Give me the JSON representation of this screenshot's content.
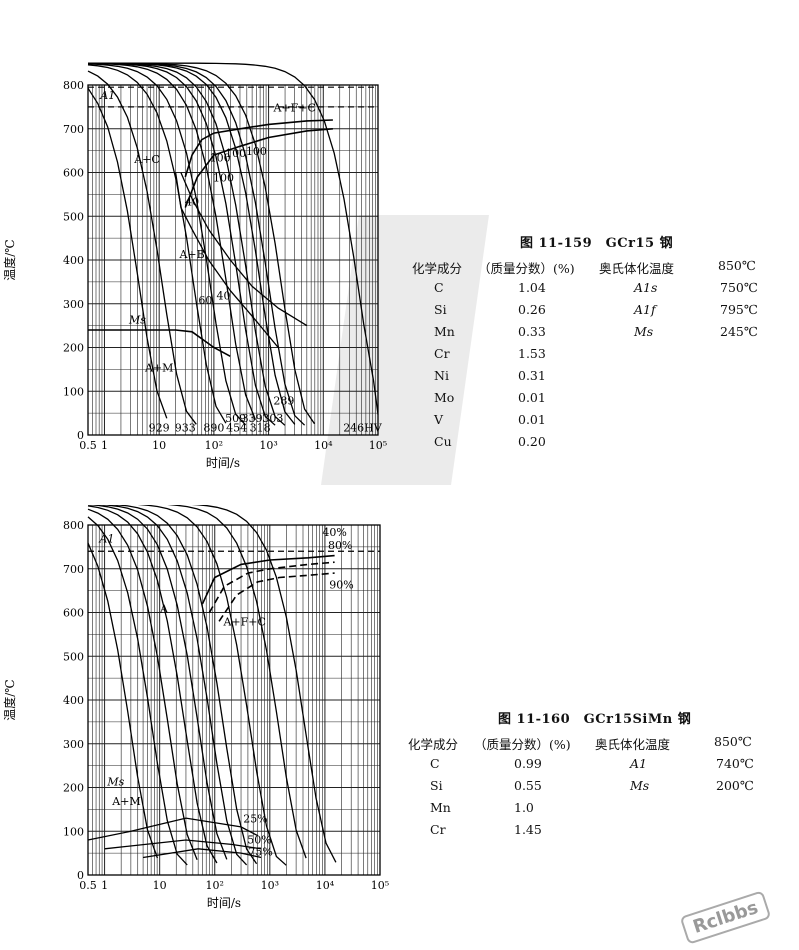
{
  "figures": [
    {
      "caption": "图 11-159　GCr15 钢",
      "composition_header": [
        "化学成分",
        "（质量分数）(%)",
        "奥氏体化温度",
        "850℃"
      ],
      "elements": [
        {
          "el": "C",
          "val": "1.04"
        },
        {
          "el": "Si",
          "val": "0.26"
        },
        {
          "el": "Mn",
          "val": "0.33"
        },
        {
          "el": "Cr",
          "val": "1.53"
        },
        {
          "el": "Ni",
          "val": "0.31"
        },
        {
          "el": "Mo",
          "val": "0.01"
        },
        {
          "el": "V",
          "val": "0.01"
        },
        {
          "el": "Cu",
          "val": "0.20"
        }
      ],
      "temps": [
        {
          "label": "A1s",
          "val": "750℃"
        },
        {
          "label": "A1f",
          "val": "795℃"
        },
        {
          "label": "Ms",
          "val": "245℃"
        }
      ]
    },
    {
      "caption": "图 11-160　GCr15SiMn 钢",
      "composition_header": [
        "化学成分",
        "（质量分数）(%)",
        "奥氏体化温度",
        "850℃"
      ],
      "elements": [
        {
          "el": "C",
          "val": "0.99"
        },
        {
          "el": "Si",
          "val": "0.55"
        },
        {
          "el": "Mn",
          "val": "1.0"
        },
        {
          "el": "Cr",
          "val": "1.45"
        }
      ],
      "temps": [
        {
          "label": "A1",
          "val": "740℃"
        },
        {
          "label": "Ms",
          "val": "200℃"
        }
      ]
    }
  ],
  "chart_data": [
    {
      "type": "line",
      "xlabel": "时间/s",
      "ylabel": "温度/℃",
      "x_scale": "log",
      "xlim": [
        0.5,
        100000
      ],
      "ylim": [
        0,
        800
      ],
      "x_ticks": [
        "0.5",
        "1",
        "10",
        "10²",
        "10³",
        "10⁴",
        "10⁵"
      ],
      "y_ticks": [
        "0",
        "100",
        "200",
        "300",
        "400",
        "500",
        "600",
        "700",
        "800"
      ],
      "grid": true,
      "region_labels": [
        "A1",
        "A+F+C",
        "A+C",
        "A+B",
        "Ms",
        "A+M"
      ],
      "percent_labels": [
        "100",
        "100",
        "100",
        "100",
        "40",
        "60",
        "40"
      ],
      "hardness_labels": [
        "929",
        "933",
        "890",
        "509",
        "454",
        "339",
        "318",
        "303",
        "289",
        "246HV"
      ],
      "reference_lines": [
        {
          "name": "A1",
          "y": [
            750,
            795
          ]
        }
      ],
      "series": [
        {
          "points": [
            [
              0.5,
              240
            ],
            [
              20,
              240
            ],
            [
              40,
              236
            ],
            [
              100,
              200
            ],
            [
              200,
              180
            ]
          ]
        },
        {
          "points": [
            [
              30,
              590
            ],
            [
              40,
              640
            ],
            [
              60,
              675
            ],
            [
              100,
              690
            ],
            [
              300,
              700
            ],
            [
              1000,
              710
            ],
            [
              5000,
              718
            ],
            [
              15000,
              720
            ]
          ]
        },
        {
          "points": [
            [
              30,
              520
            ],
            [
              50,
              590
            ],
            [
              100,
              640
            ],
            [
              300,
              660
            ],
            [
              1000,
              680
            ],
            [
              5000,
              695
            ],
            [
              15000,
              700
            ]
          ]
        }
      ]
    },
    {
      "type": "line",
      "xlabel": "时间/s",
      "ylabel": "温度/℃",
      "x_scale": "log",
      "xlim": [
        0.5,
        100000
      ],
      "ylim": [
        0,
        800
      ],
      "x_ticks": [
        "0.5",
        "1",
        "10",
        "10²",
        "10³",
        "10⁴",
        "10⁵"
      ],
      "y_ticks": [
        "0",
        "100",
        "200",
        "300",
        "400",
        "500",
        "600",
        "700",
        "800"
      ],
      "grid": true,
      "region_labels": [
        "A1",
        "A",
        "A+F+C",
        "Ms",
        "A+M"
      ],
      "percent_labels": [
        "40%",
        "80%",
        "90%",
        "25%",
        "50%",
        "75%"
      ],
      "reference_lines": [
        {
          "name": "A1",
          "y": [
            740
          ]
        }
      ],
      "series": [
        {
          "points": [
            [
              60,
              620
            ],
            [
              100,
              680
            ],
            [
              300,
              710
            ],
            [
              1000,
              720
            ],
            [
              5000,
              725
            ],
            [
              15000,
              730
            ]
          ]
        },
        {
          "points": [
            [
              80,
              600
            ],
            [
              150,
              660
            ],
            [
              400,
              690
            ],
            [
              1000,
              700
            ],
            [
              5000,
              710
            ],
            [
              15000,
              715
            ]
          ]
        },
        {
          "points": [
            [
              120,
              580
            ],
            [
              250,
              640
            ],
            [
              600,
              670
            ],
            [
              1500,
              680
            ],
            [
              5000,
              685
            ],
            [
              15000,
              690
            ]
          ]
        }
      ]
    }
  ]
}
